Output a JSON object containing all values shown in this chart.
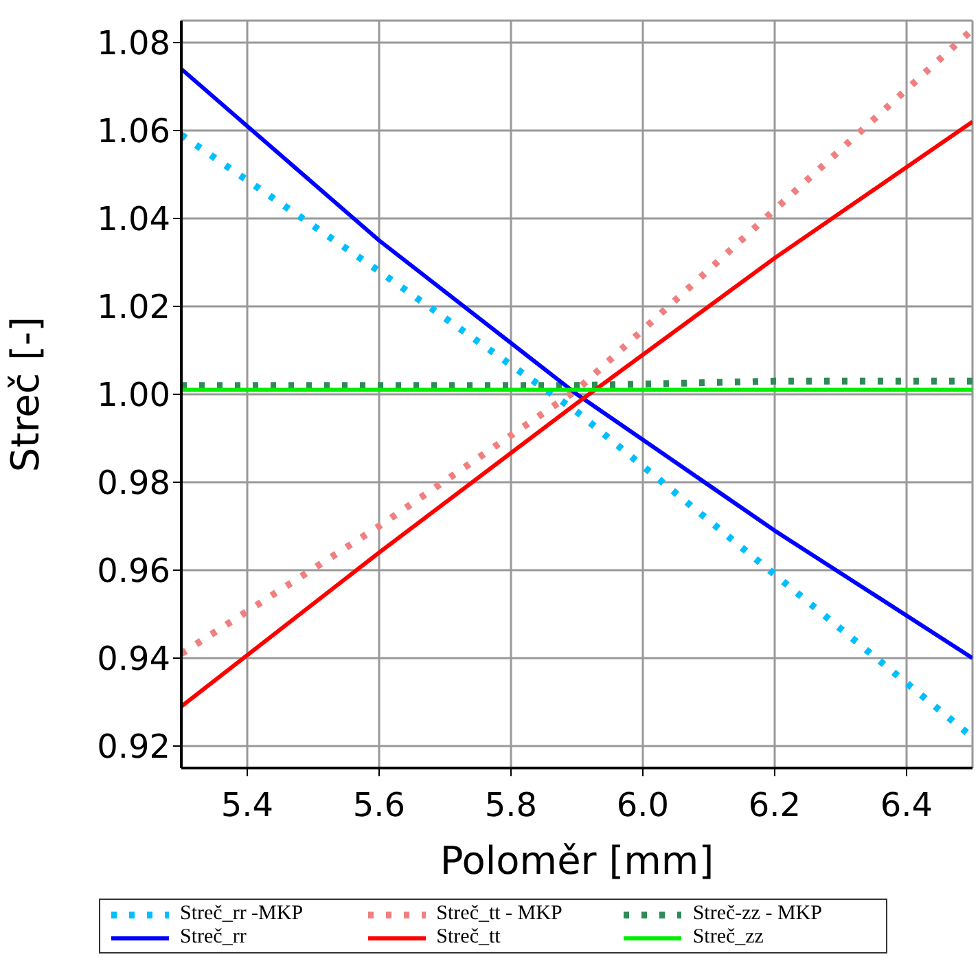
{
  "chart_data": {
    "type": "line",
    "xlabel": "Poloměr [mm]",
    "ylabel": "Streč [-]",
    "x": [
      5.3,
      5.6,
      5.9,
      6.2,
      6.5
    ],
    "series": [
      {
        "name": "Streč_rr -MKP",
        "color": "#00bfff",
        "values": [
          1.059,
          1.028,
          0.996,
          0.959,
          0.922
        ],
        "line_style": "dotted"
      },
      {
        "name": "Streč_tt - MKP",
        "color": "#f08080",
        "values": [
          0.941,
          0.97,
          1.001,
          1.042,
          1.083
        ],
        "line_style": "dotted"
      },
      {
        "name": "Streč-zz - MKP",
        "color": "#2e8b57",
        "values": [
          1.002,
          1.002,
          1.002,
          1.003,
          1.003
        ],
        "line_style": "dotted"
      },
      {
        "name": "Streč_rr",
        "color": "#0000ff",
        "values": [
          1.074,
          1.035,
          1.0,
          0.969,
          0.94
        ],
        "line_style": "solid"
      },
      {
        "name": "Streč_tt",
        "color": "#ff0000",
        "values": [
          0.929,
          0.964,
          0.998,
          1.031,
          1.062
        ],
        "line_style": "solid"
      },
      {
        "name": "Streč_zz",
        "color": "#00ee00",
        "values": [
          1.001,
          1.001,
          1.001,
          1.001,
          1.001
        ],
        "line_style": "solid"
      }
    ],
    "xlim": [
      5.3,
      6.5
    ],
    "xticks": [
      5.4,
      5.6,
      5.8,
      {
        "value": 6.0,
        "label": "6.0"
      },
      6.2,
      6.4
    ],
    "ylim": [
      0.915,
      1.085
    ],
    "yticks": [
      0.92,
      0.94,
      0.96,
      0.98,
      {
        "value": 1.0,
        "label": "1.00"
      },
      1.02,
      1.04,
      1.06,
      1.08
    ],
    "grid": true,
    "legend": "bottom",
    "marker": "none"
  }
}
